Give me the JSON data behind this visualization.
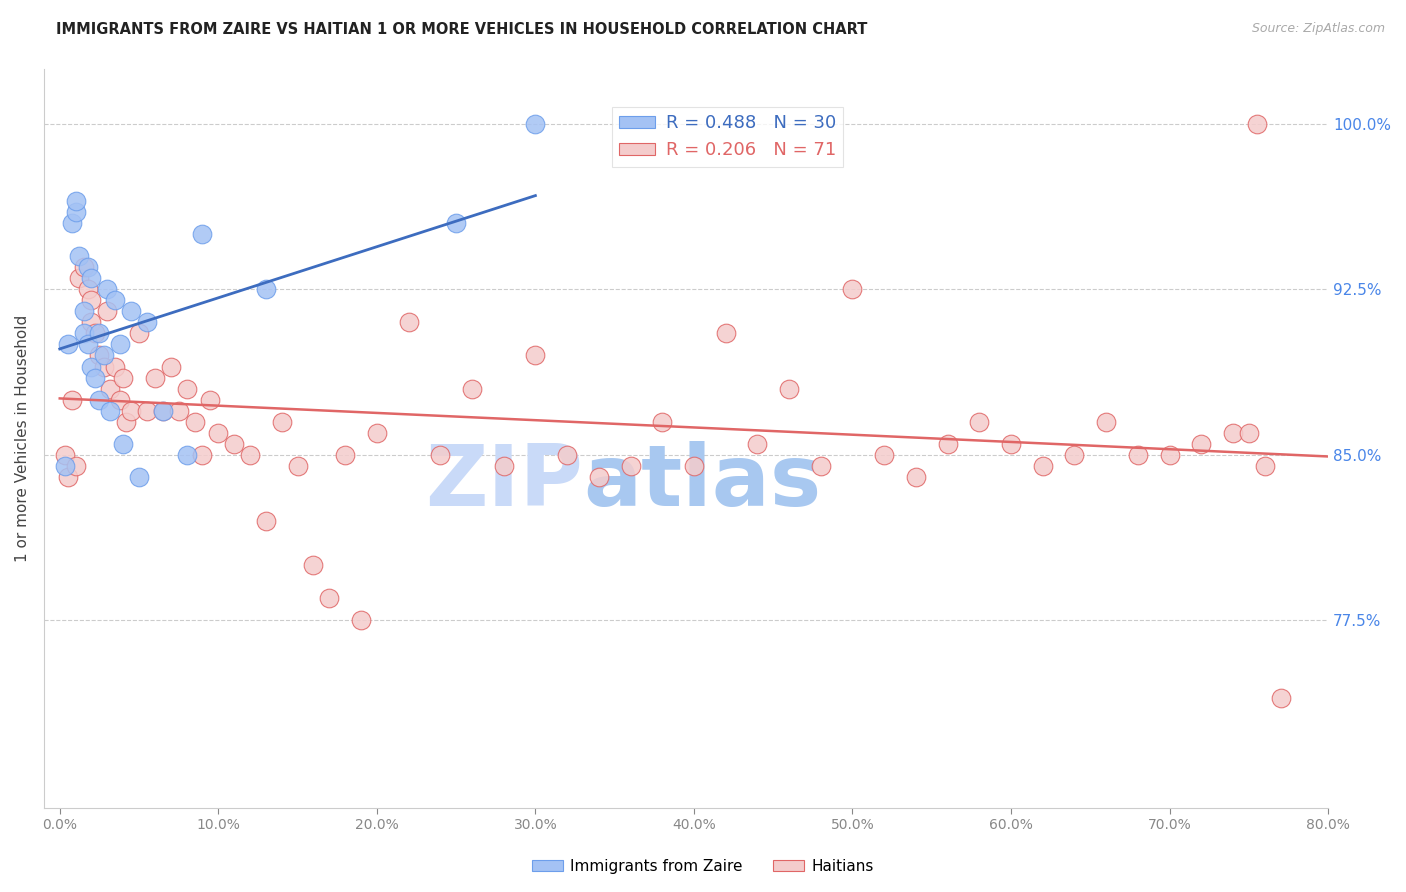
{
  "title": "IMMIGRANTS FROM ZAIRE VS HAITIAN 1 OR MORE VEHICLES IN HOUSEHOLD CORRELATION CHART",
  "source": "Source: ZipAtlas.com",
  "ylabel": "1 or more Vehicles in Household",
  "legend_label_blue": "Immigrants from Zaire",
  "legend_label_pink": "Haitians",
  "R_blue": 0.488,
  "N_blue": 30,
  "R_pink": 0.206,
  "N_pink": 71,
  "xlim": [
    -1.0,
    80.0
  ],
  "ylim": [
    69.0,
    102.5
  ],
  "right_yticks": [
    77.5,
    85.0,
    92.5,
    100.0
  ],
  "bottom_xtick_vals": [
    0.0,
    10.0,
    20.0,
    30.0,
    40.0,
    50.0,
    60.0,
    70.0,
    80.0
  ],
  "color_blue": "#a4c2f4",
  "color_pink": "#f4cccc",
  "edge_blue": "#6d9eeb",
  "edge_pink": "#e06666",
  "line_blue": "#3d6cbf",
  "line_pink": "#cc4444",
  "title_color": "#222222",
  "tick_color_right": "#4a86e8",
  "tick_color_x": "#888888",
  "watermark_zip_color": "#c9daf8",
  "watermark_atlas_color": "#a0c0e8",
  "blue_x": [
    0.3,
    0.5,
    0.8,
    1.0,
    1.0,
    1.2,
    1.5,
    1.5,
    1.8,
    1.8,
    2.0,
    2.0,
    2.2,
    2.5,
    2.5,
    2.8,
    3.0,
    3.2,
    3.5,
    3.8,
    4.0,
    4.5,
    5.0,
    5.5,
    6.5,
    8.0,
    9.0,
    13.0,
    25.0,
    30.0
  ],
  "blue_y": [
    84.5,
    90.0,
    95.5,
    96.0,
    96.5,
    94.0,
    91.5,
    90.5,
    90.0,
    93.5,
    93.0,
    89.0,
    88.5,
    90.5,
    87.5,
    89.5,
    92.5,
    87.0,
    92.0,
    90.0,
    85.5,
    91.5,
    84.0,
    91.0,
    87.0,
    85.0,
    95.0,
    92.5,
    95.5,
    100.0
  ],
  "pink_x": [
    0.3,
    0.5,
    0.8,
    1.0,
    1.2,
    1.5,
    1.8,
    2.0,
    2.0,
    2.2,
    2.5,
    2.8,
    3.0,
    3.2,
    3.5,
    3.8,
    4.0,
    4.2,
    4.5,
    5.0,
    5.5,
    6.0,
    6.5,
    7.0,
    7.5,
    8.0,
    8.5,
    9.0,
    9.5,
    10.0,
    11.0,
    12.0,
    13.0,
    14.0,
    15.0,
    16.0,
    17.0,
    18.0,
    19.0,
    20.0,
    22.0,
    24.0,
    26.0,
    28.0,
    30.0,
    32.0,
    34.0,
    36.0,
    38.0,
    40.0,
    42.0,
    44.0,
    46.0,
    48.0,
    50.0,
    52.0,
    54.0,
    56.0,
    58.0,
    60.0,
    62.0,
    64.0,
    66.0,
    68.0,
    70.0,
    72.0,
    74.0,
    75.0,
    76.0,
    77.0,
    75.5
  ],
  "pink_y": [
    85.0,
    84.0,
    87.5,
    84.5,
    93.0,
    93.5,
    92.5,
    92.0,
    91.0,
    90.5,
    89.5,
    89.0,
    91.5,
    88.0,
    89.0,
    87.5,
    88.5,
    86.5,
    87.0,
    90.5,
    87.0,
    88.5,
    87.0,
    89.0,
    87.0,
    88.0,
    86.5,
    85.0,
    87.5,
    86.0,
    85.5,
    85.0,
    82.0,
    86.5,
    84.5,
    80.0,
    78.5,
    85.0,
    77.5,
    86.0,
    91.0,
    85.0,
    88.0,
    84.5,
    89.5,
    85.0,
    84.0,
    84.5,
    86.5,
    84.5,
    90.5,
    85.5,
    88.0,
    84.5,
    92.5,
    85.0,
    84.0,
    85.5,
    86.5,
    85.5,
    84.5,
    85.0,
    86.5,
    85.0,
    85.0,
    85.5,
    86.0,
    86.0,
    84.5,
    74.0,
    100.0
  ]
}
